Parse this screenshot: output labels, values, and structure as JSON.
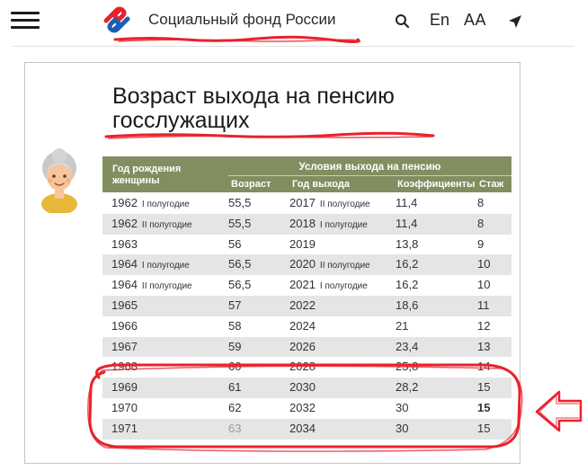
{
  "header": {
    "org_name": "Социальный фонд России",
    "lang_label": "En",
    "font_size_label": "AA",
    "icons": {
      "menu": "hamburger-icon",
      "logo": "sfr-logo",
      "search": "search-icon",
      "geo": "location-arrow-icon"
    },
    "colors": {
      "logo_red": "#e5242a",
      "logo_blue": "#1a5fb4"
    }
  },
  "slide": {
    "title_line1": "Возраст выхода на пенсию",
    "title_line2": "госслужащих",
    "table": {
      "col_birth_line1": "Год рождения",
      "col_birth_line2": "женщины",
      "group_header": "Условия выхода на пенсию",
      "col_age": "Возраст",
      "col_exit_year": "Год выхода",
      "col_coef": "Коэффициенты",
      "col_exp": "Стаж",
      "header_color": "#828e5f",
      "rows": [
        {
          "year": "1962",
          "year_half": "I полугодие",
          "age": "55,5",
          "exit": "2017",
          "exit_half": "II полугодие",
          "coef": "11,4",
          "exp": "8"
        },
        {
          "year": "1962",
          "year_half": "II полугодие",
          "age": "55,5",
          "exit": "2018",
          "exit_half": "I полугодие",
          "coef": "11,4",
          "exp": "8"
        },
        {
          "year": "1963",
          "year_half": "",
          "age": "56",
          "exit": "2019",
          "exit_half": "",
          "coef": "13,8",
          "exp": "9"
        },
        {
          "year": "1964",
          "year_half": "I полугодие",
          "age": "56,5",
          "exit": "2020",
          "exit_half": "II полугодие",
          "coef": "16,2",
          "exp": "10"
        },
        {
          "year": "1964",
          "year_half": "II полугодие",
          "age": "56,5",
          "exit": "2021",
          "exit_half": "I полугодие",
          "coef": "16,2",
          "exp": "10"
        },
        {
          "year": "1965",
          "year_half": "",
          "age": "57",
          "exit": "2022",
          "exit_half": "",
          "coef": "18,6",
          "exp": "11"
        },
        {
          "year": "1966",
          "year_half": "",
          "age": "58",
          "exit": "2024",
          "exit_half": "",
          "coef": "21",
          "exp": "12"
        },
        {
          "year": "1967",
          "year_half": "",
          "age": "59",
          "exit": "2026",
          "exit_half": "",
          "coef": "23,4",
          "exp": "13"
        },
        {
          "year": "1968",
          "year_half": "",
          "age": "60",
          "exit": "2028",
          "exit_half": "",
          "coef": "25,8",
          "exp": "14"
        },
        {
          "year": "1969",
          "year_half": "",
          "age": "61",
          "exit": "2030",
          "exit_half": "",
          "coef": "28,2",
          "exp": "15"
        },
        {
          "year": "1970",
          "year_half": "",
          "age": "62",
          "exit": "2032",
          "exit_half": "",
          "coef": "30",
          "exp": "15"
        },
        {
          "year": "1971",
          "year_half": "",
          "age": "63",
          "exit": "2034",
          "exit_half": "",
          "coef": "30",
          "exp": "15"
        }
      ]
    }
  },
  "annotations": {
    "highlight_color": "#e8222c"
  }
}
